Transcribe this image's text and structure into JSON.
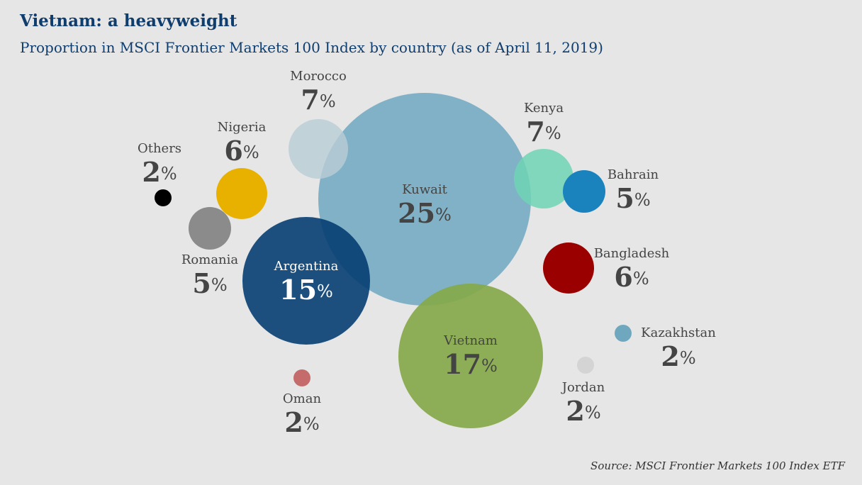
{
  "title": "Vietnam: a heavyweight",
  "subtitle": "Proportion in MSCI Frontier Markets 100 Index by country (as of April 11, 2019)",
  "source": "Source: MSCI Frontier Markets 100 Index ETF",
  "chart_data": {
    "type": "bubble",
    "unit": "%",
    "series": [
      {
        "name": "Kuwait",
        "value": 25,
        "color": "#6fa7bf",
        "opacity": 0.85
      },
      {
        "name": "Vietnam",
        "value": 17,
        "color": "#86a94a",
        "opacity": 0.92
      },
      {
        "name": "Argentina",
        "value": 15,
        "color": "#003a70",
        "opacity": 0.88
      },
      {
        "name": "Morocco",
        "value": 7,
        "color": "#b9cdd6",
        "opacity": 0.8
      },
      {
        "name": "Kenya",
        "value": 7,
        "color": "#6fd3b4",
        "opacity": 0.85
      },
      {
        "name": "Nigeria",
        "value": 6,
        "color": "#e8b100",
        "opacity": 1
      },
      {
        "name": "Bangladesh",
        "value": 6,
        "color": "#9a0000",
        "opacity": 1
      },
      {
        "name": "Romania",
        "value": 5,
        "color": "#8b8b8b",
        "opacity": 1
      },
      {
        "name": "Bahrain",
        "value": 5,
        "color": "#1a82bd",
        "opacity": 1
      },
      {
        "name": "Others",
        "value": 2,
        "color": "#000000",
        "opacity": 1
      },
      {
        "name": "Kazakhstan",
        "value": 2,
        "color": "#6fa7bf",
        "opacity": 1
      },
      {
        "name": "Jordan",
        "value": 2,
        "color": "#d4d4d4",
        "opacity": 1
      },
      {
        "name": "Oman",
        "value": 2,
        "color": "#c56b6b",
        "opacity": 1
      }
    ]
  }
}
